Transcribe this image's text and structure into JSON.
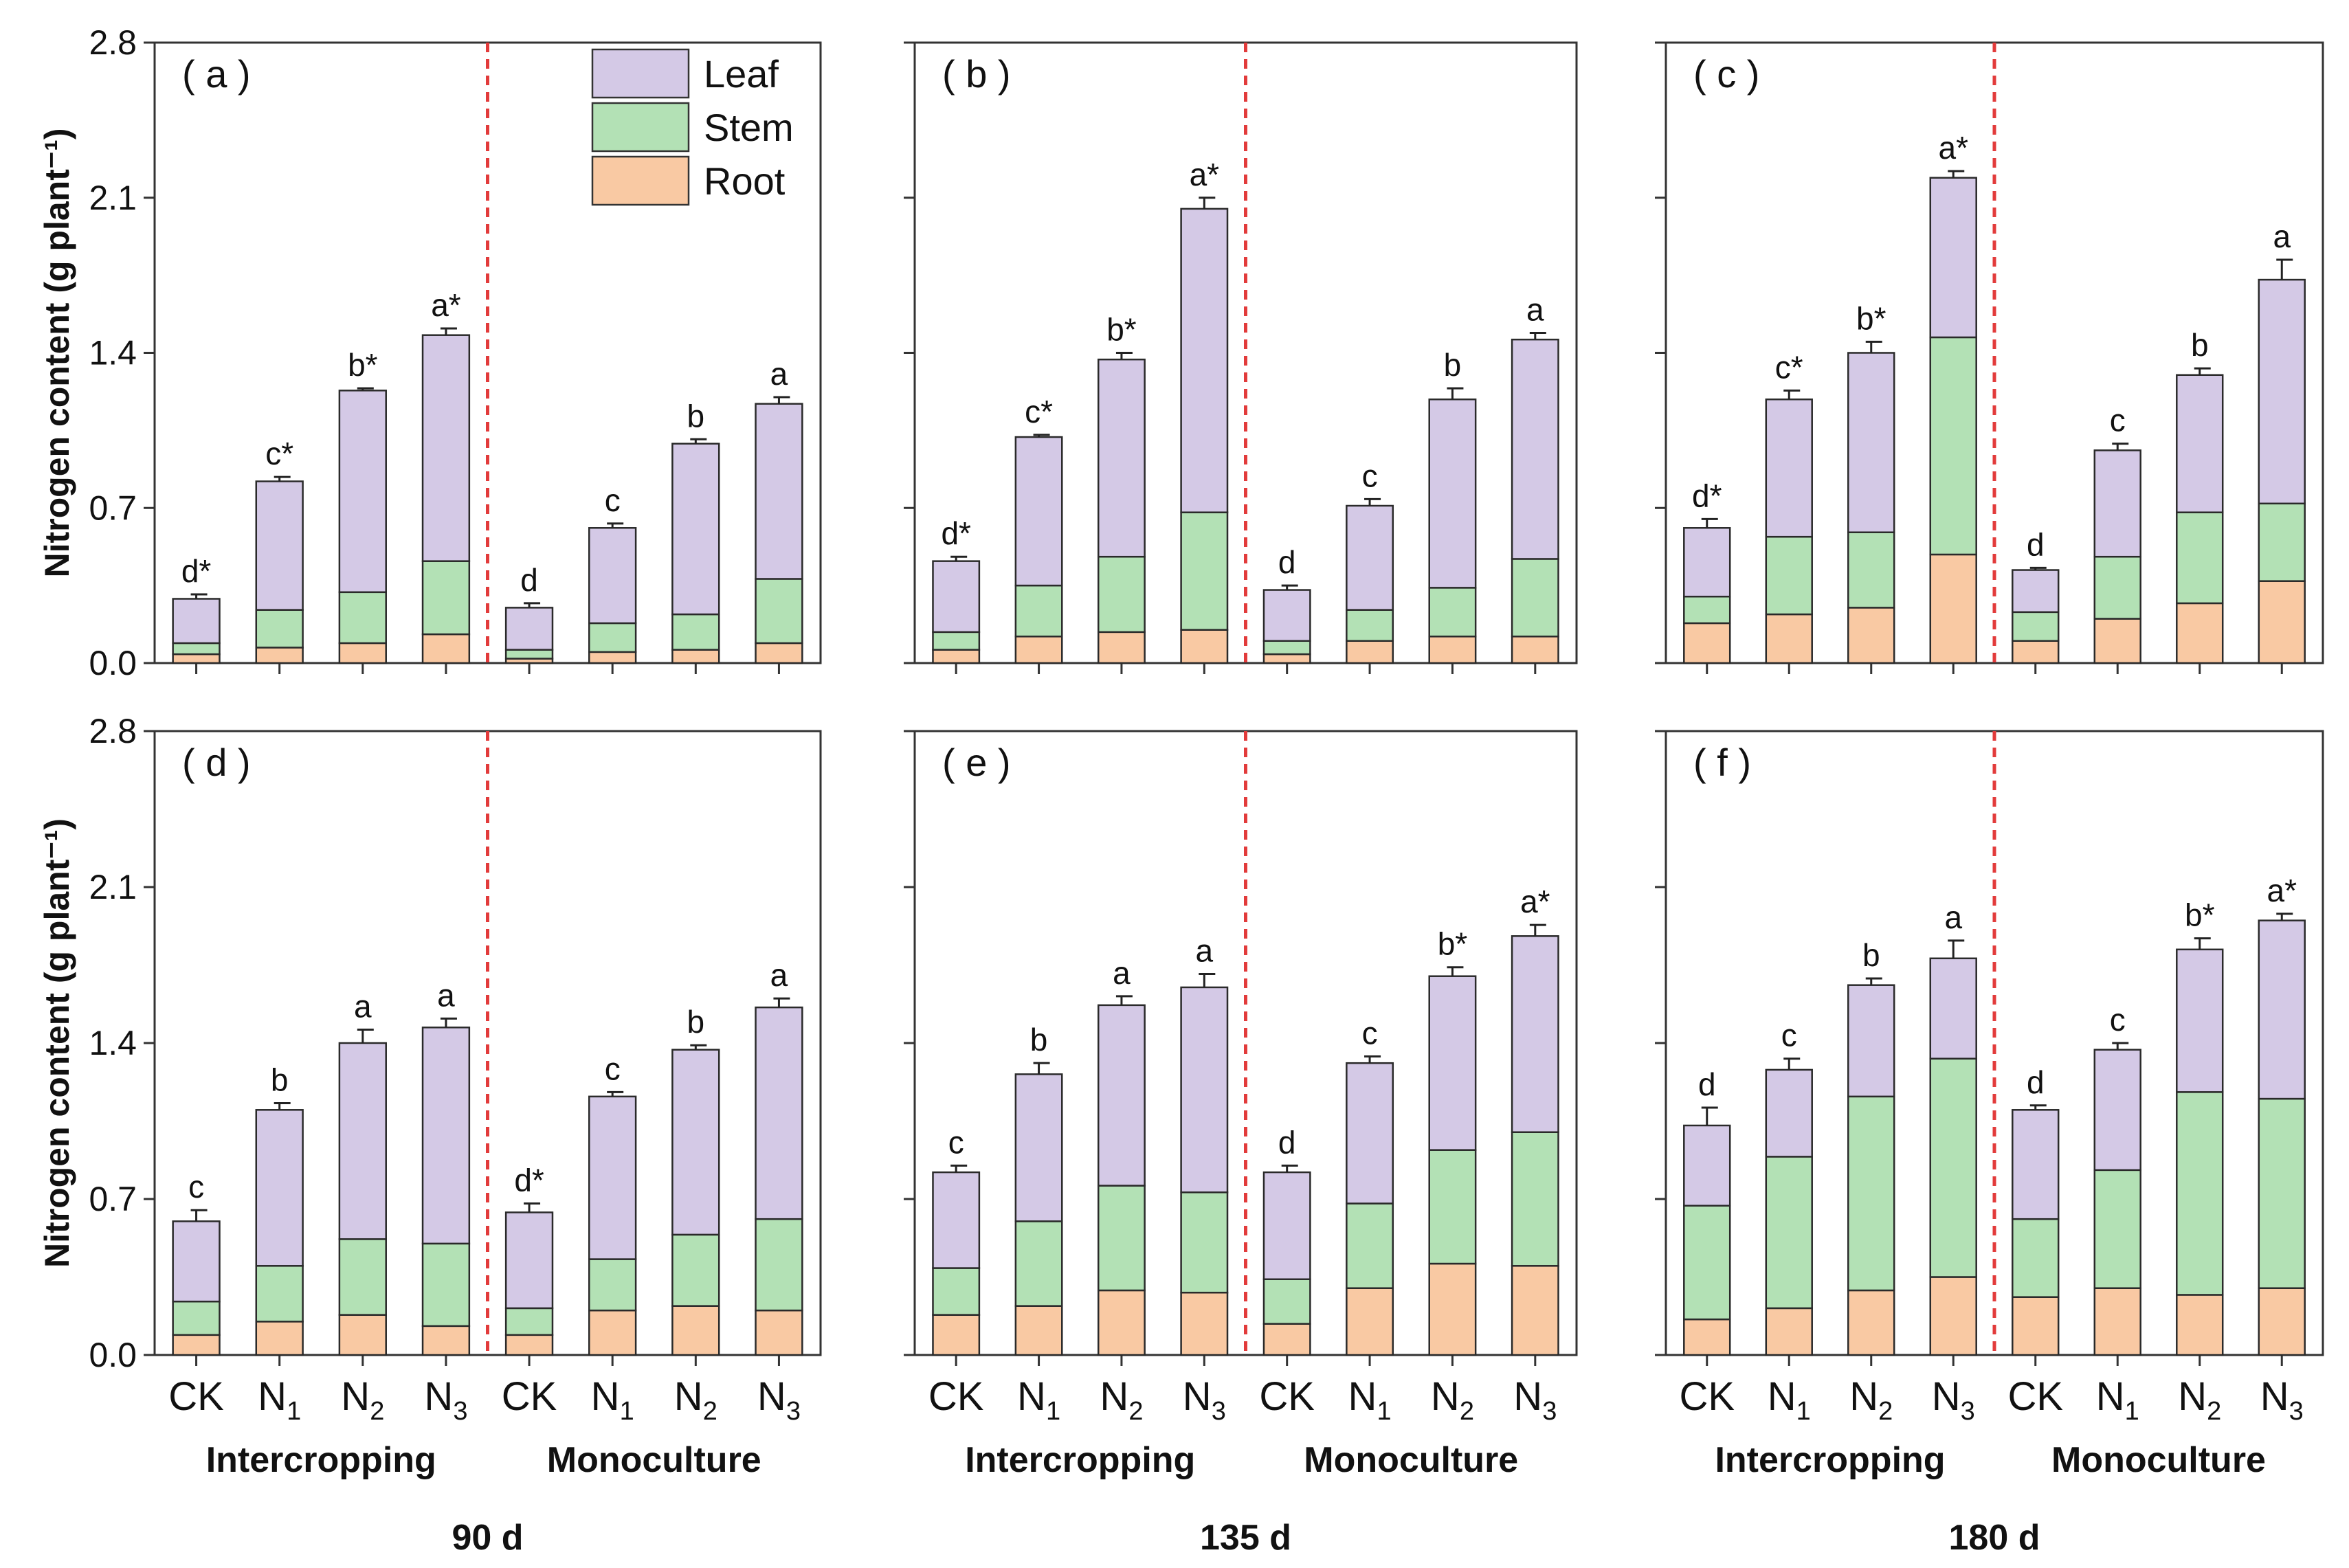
{
  "chart_data": {
    "type": "bar",
    "stacked": true,
    "ylabel": "Nitrogen content  (g plant⁻¹)",
    "ylim": [
      0,
      2.8
    ],
    "yticks": [
      "0.0",
      "0.7",
      "1.4",
      "2.1",
      "2.8"
    ],
    "categories": [
      {
        "main": "CK",
        "sub": ""
      },
      {
        "main": "N",
        "sub": "1"
      },
      {
        "main": "N",
        "sub": "2"
      },
      {
        "main": "N",
        "sub": "3"
      },
      {
        "main": "CK",
        "sub": ""
      },
      {
        "main": "N",
        "sub": "1"
      },
      {
        "main": "N",
        "sub": "2"
      },
      {
        "main": "N",
        "sub": "3"
      }
    ],
    "groups": [
      "Intercropping",
      "Monoculture"
    ],
    "series_names": [
      "Root",
      "Stem",
      "Leaf"
    ],
    "colors": {
      "Root": "#f9c9a3",
      "Stem": "#b3e1b5",
      "Leaf": "#d4c9e6",
      "divider": "#e23b3b"
    },
    "legend": {
      "placement": "top-right of panel (a)",
      "entries": [
        "Leaf",
        "Stem",
        "Root"
      ]
    },
    "panels": [
      {
        "label": "( a )",
        "time": "90 d",
        "root": [
          0.04,
          0.07,
          0.09,
          0.13,
          0.02,
          0.05,
          0.06,
          0.09
        ],
        "stem": [
          0.05,
          0.17,
          0.23,
          0.33,
          0.04,
          0.13,
          0.16,
          0.29
        ],
        "leaf": [
          0.2,
          0.58,
          0.91,
          1.02,
          0.19,
          0.43,
          0.77,
          0.79
        ],
        "err": [
          0.02,
          0.02,
          0.01,
          0.03,
          0.02,
          0.02,
          0.02,
          0.03
        ],
        "sig": [
          "d*",
          "c*",
          "b*",
          "a*",
          "d",
          "c",
          "b",
          "a"
        ]
      },
      {
        "label": "( b )",
        "time": "135 d",
        "root": [
          0.06,
          0.12,
          0.14,
          0.15,
          0.04,
          0.1,
          0.12,
          0.12
        ],
        "stem": [
          0.08,
          0.23,
          0.34,
          0.53,
          0.06,
          0.14,
          0.22,
          0.35
        ],
        "leaf": [
          0.32,
          0.67,
          0.89,
          1.37,
          0.23,
          0.47,
          0.85,
          0.99
        ],
        "err": [
          0.02,
          0.01,
          0.03,
          0.05,
          0.02,
          0.03,
          0.05,
          0.03
        ],
        "sig": [
          "d*",
          "c*",
          "b*",
          "a*",
          "d",
          "c",
          "b",
          "a"
        ]
      },
      {
        "label": "( c )",
        "time": "180 d",
        "root": [
          0.18,
          0.22,
          0.25,
          0.49,
          0.1,
          0.2,
          0.27,
          0.37
        ],
        "stem": [
          0.12,
          0.35,
          0.34,
          0.98,
          0.13,
          0.28,
          0.41,
          0.35
        ],
        "leaf": [
          0.31,
          0.62,
          0.81,
          0.72,
          0.19,
          0.48,
          0.62,
          1.01
        ],
        "err": [
          0.04,
          0.04,
          0.05,
          0.03,
          0.01,
          0.03,
          0.03,
          0.09
        ],
        "sig": [
          "d*",
          "c*",
          "b*",
          "a*",
          "d",
          "c",
          "b",
          "a"
        ]
      },
      {
        "label": "( d )",
        "time": "90 d",
        "root": [
          0.09,
          0.15,
          0.18,
          0.13,
          0.09,
          0.2,
          0.22,
          0.2
        ],
        "stem": [
          0.15,
          0.25,
          0.34,
          0.37,
          0.12,
          0.23,
          0.32,
          0.41
        ],
        "leaf": [
          0.36,
          0.7,
          0.88,
          0.97,
          0.43,
          0.73,
          0.83,
          0.95
        ],
        "err": [
          0.05,
          0.03,
          0.06,
          0.04,
          0.04,
          0.02,
          0.02,
          0.04
        ],
        "sig": [
          "c",
          "b",
          "a",
          "a",
          "d*",
          "c",
          "b",
          "a"
        ]
      },
      {
        "label": "( e )",
        "time": "135 d",
        "root": [
          0.18,
          0.22,
          0.29,
          0.28,
          0.14,
          0.3,
          0.41,
          0.4
        ],
        "stem": [
          0.21,
          0.38,
          0.47,
          0.45,
          0.2,
          0.38,
          0.51,
          0.6
        ],
        "leaf": [
          0.43,
          0.66,
          0.81,
          0.92,
          0.48,
          0.63,
          0.78,
          0.88
        ],
        "err": [
          0.03,
          0.05,
          0.04,
          0.06,
          0.03,
          0.03,
          0.04,
          0.05
        ],
        "sig": [
          "c",
          "b",
          "a",
          "a",
          "d",
          "c",
          "b*",
          "a*"
        ]
      },
      {
        "label": "( f )",
        "time": "180 d",
        "root": [
          0.16,
          0.21,
          0.29,
          0.35,
          0.26,
          0.3,
          0.27,
          0.3
        ],
        "stem": [
          0.51,
          0.68,
          0.87,
          0.98,
          0.35,
          0.53,
          0.91,
          0.85
        ],
        "leaf": [
          0.36,
          0.39,
          0.5,
          0.45,
          0.49,
          0.54,
          0.64,
          0.8
        ],
        "err": [
          0.08,
          0.05,
          0.03,
          0.08,
          0.02,
          0.03,
          0.05,
          0.03
        ],
        "sig": [
          "d",
          "c",
          "b",
          "a",
          "d",
          "c",
          "b*",
          "a*"
        ]
      }
    ]
  }
}
